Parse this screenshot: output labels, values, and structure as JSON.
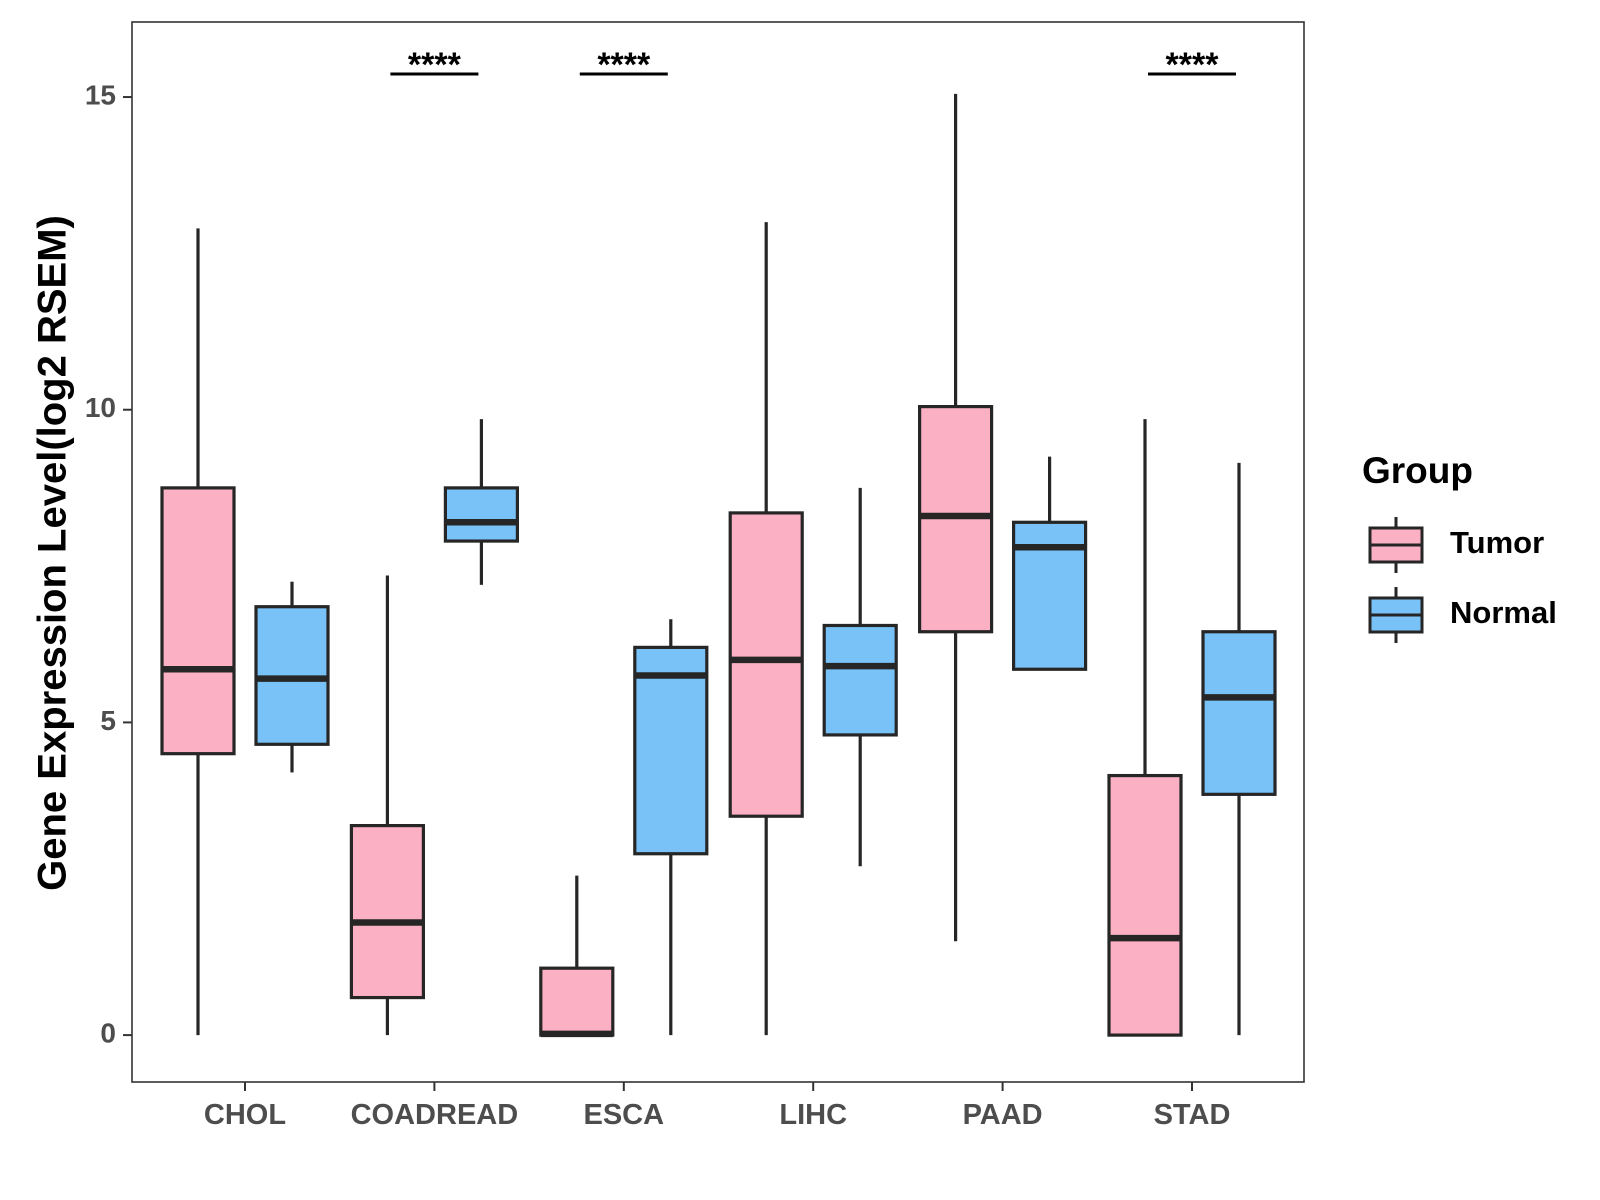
{
  "chart_data": {
    "type": "boxplot",
    "ylabel": "Gene Expression Level(log2 RSEM)",
    "xlabel": "",
    "ylim": [
      -0.75,
      16.2
    ],
    "yticks": [
      0,
      5,
      10,
      15
    ],
    "categories": [
      "CHOL",
      "COADREAD",
      "ESCA",
      "LIHC",
      "PAAD",
      "STAD"
    ],
    "legend": {
      "title": "Group",
      "position": "right",
      "entries": [
        {
          "name": "Tumor",
          "color": "#fbb1c3"
        },
        {
          "name": "Normal",
          "color": "#79c2f8"
        }
      ]
    },
    "series": [
      {
        "name": "Tumor",
        "color": "#fbb1c3",
        "boxes": [
          {
            "min": 0.0,
            "q1": 4.5,
            "median": 5.85,
            "q3": 8.75,
            "max": 12.9
          },
          {
            "min": 0.0,
            "q1": 0.6,
            "median": 1.8,
            "q3": 3.35,
            "max": 7.35
          },
          {
            "min": 0.0,
            "q1": 0.0,
            "median": 0.02,
            "q3": 1.07,
            "max": 2.55
          },
          {
            "min": 0.0,
            "q1": 3.5,
            "median": 6.0,
            "q3": 8.35,
            "max": 13.0
          },
          {
            "min": 1.5,
            "q1": 6.45,
            "median": 8.3,
            "q3": 10.05,
            "max": 15.05
          },
          {
            "min": 0.0,
            "q1": 0.0,
            "median": 1.55,
            "q3": 4.15,
            "max": 9.85
          }
        ]
      },
      {
        "name": "Normal",
        "color": "#79c2f8",
        "boxes": [
          {
            "min": 4.2,
            "q1": 4.65,
            "median": 5.7,
            "q3": 6.85,
            "max": 7.25
          },
          {
            "min": 7.2,
            "q1": 7.9,
            "median": 8.2,
            "q3": 8.75,
            "max": 9.85
          },
          {
            "min": 0.0,
            "q1": 2.9,
            "median": 5.75,
            "q3": 6.2,
            "max": 6.65
          },
          {
            "min": 2.7,
            "q1": 4.8,
            "median": 5.9,
            "q3": 6.55,
            "max": 8.75
          },
          {
            "min": 5.85,
            "q1": 5.85,
            "median": 7.8,
            "q3": 8.2,
            "max": 9.25
          },
          {
            "min": 0.0,
            "q1": 3.85,
            "median": 5.4,
            "q3": 6.45,
            "max": 9.15
          }
        ]
      }
    ],
    "significance": [
      {
        "category": "COADREAD",
        "label": "****"
      },
      {
        "category": "ESCA",
        "label": "****"
      },
      {
        "category": "STAD",
        "label": "****"
      }
    ]
  }
}
